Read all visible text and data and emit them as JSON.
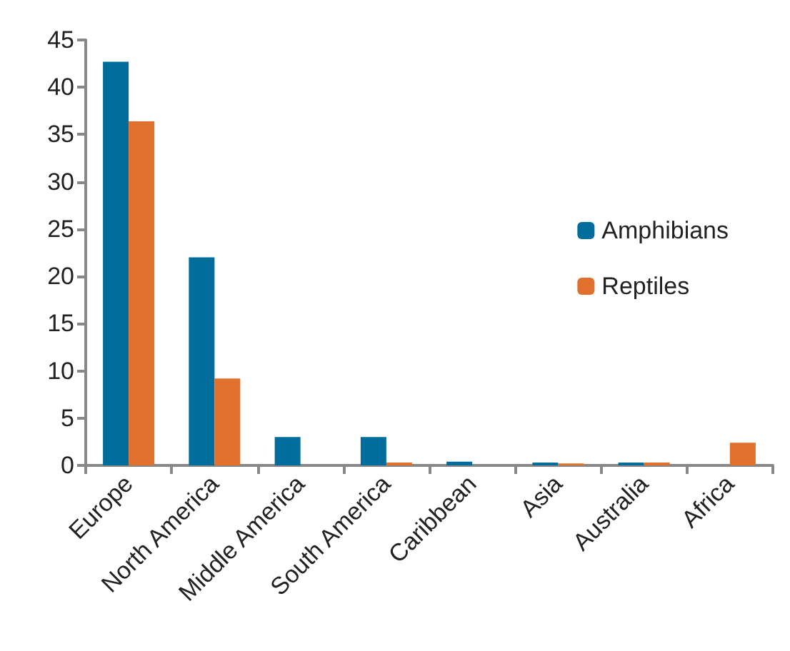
{
  "chart_data": {
    "type": "bar",
    "categories": [
      "Europe",
      "North America",
      "Middle America",
      "South America",
      "Caribbean",
      "Asia",
      "Australia",
      "Africa"
    ],
    "series": [
      {
        "name": "Amphibians",
        "color": "#006d9c",
        "values": [
          42.7,
          22,
          3,
          3,
          0.4,
          0.3,
          0.3,
          0
        ]
      },
      {
        "name": "Reptiles",
        "color": "#e0702e",
        "values": [
          36.4,
          9.2,
          0,
          0.3,
          0,
          0.2,
          0.3,
          2.4
        ]
      }
    ],
    "ylim": [
      0,
      45
    ],
    "yticks": [
      0,
      5,
      10,
      15,
      20,
      25,
      30,
      35,
      40,
      45
    ],
    "grid": false,
    "legend": "right"
  }
}
